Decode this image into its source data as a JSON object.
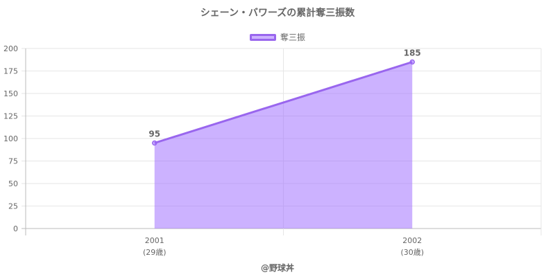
{
  "chart_data": {
    "type": "area",
    "title": "シェーン・バワーズの累計奪三振数",
    "categories": [
      "2001",
      "2002"
    ],
    "category_sublabels": [
      "(29歳)",
      "(30歳)"
    ],
    "series": [
      {
        "name": "奪三振",
        "values": [
          95,
          185
        ],
        "color": "#9966ee",
        "fill": "rgba(153,102,255,0.5)"
      }
    ],
    "data_labels": [
      "95",
      "185"
    ],
    "yticks": [
      "0",
      "25",
      "50",
      "75",
      "100",
      "125",
      "150",
      "175",
      "200"
    ],
    "ylim": [
      0,
      200
    ],
    "grid": true,
    "legend_position": "top"
  },
  "footer": {
    "credit": "@野球丼"
  }
}
